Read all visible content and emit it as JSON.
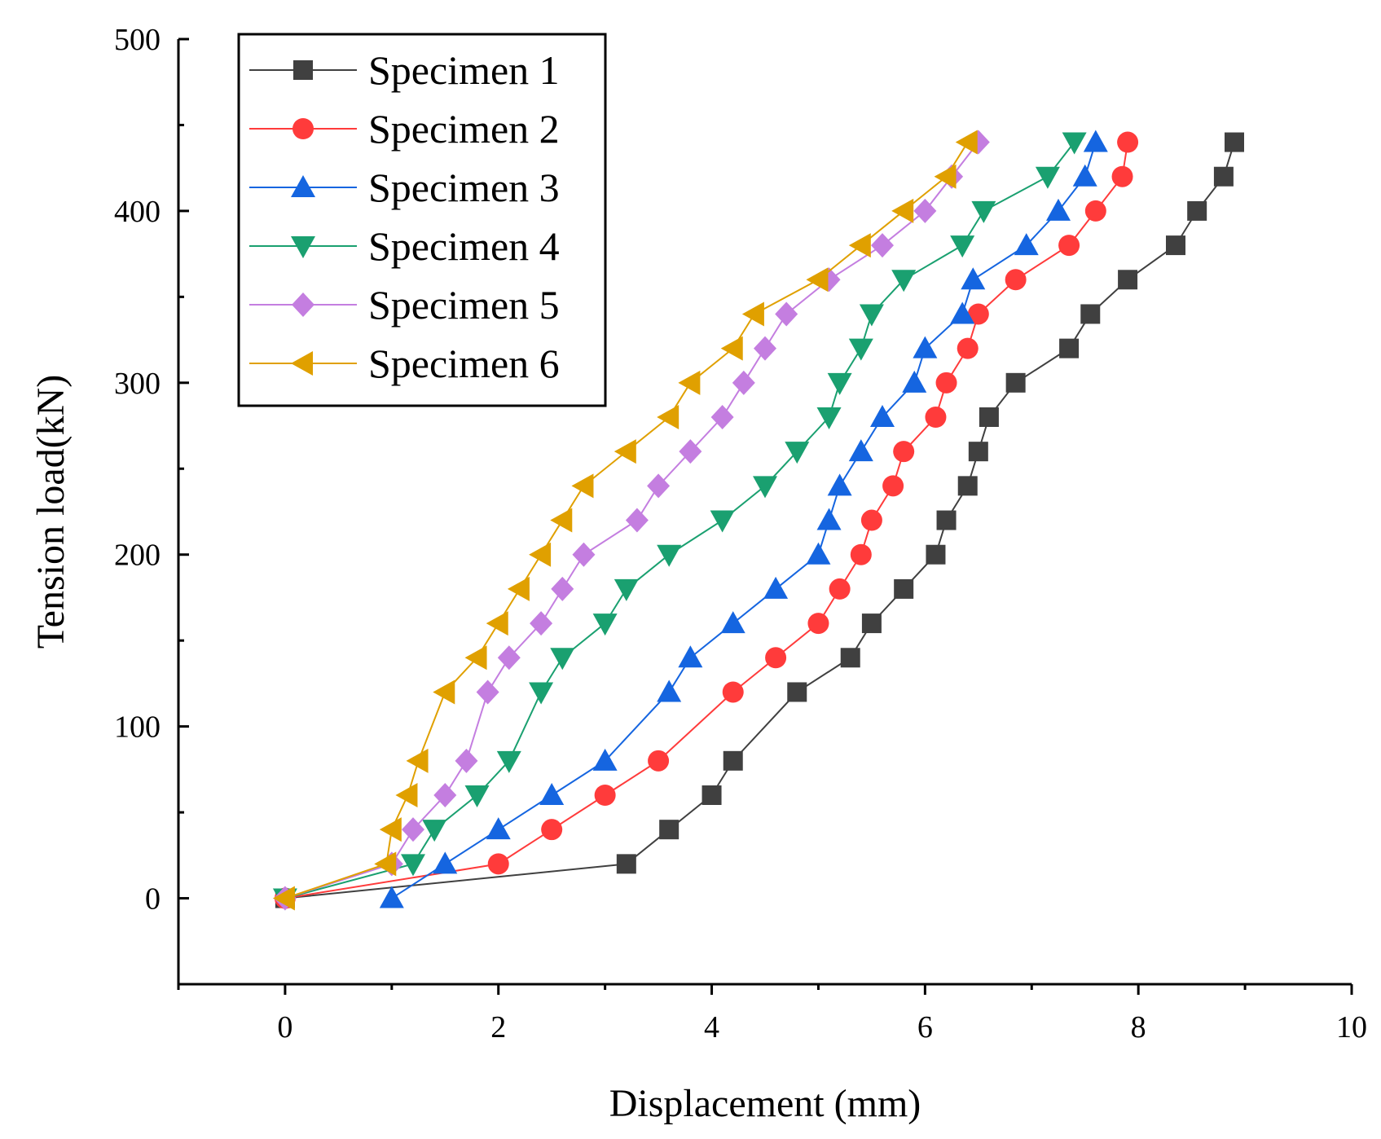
{
  "chart_data": {
    "type": "line",
    "title": "",
    "xlabel": "Displacement (mm)",
    "ylabel": "Tension load(kN)",
    "xlim": [
      -1,
      10
    ],
    "ylim": [
      -50,
      500
    ],
    "xticks": [
      0,
      2,
      4,
      6,
      8,
      10
    ],
    "yticks": [
      0,
      100,
      200,
      300,
      400,
      500
    ],
    "xtick_labels": [
      "0",
      "2",
      "4",
      "6",
      "8",
      "10"
    ],
    "ytick_labels": [
      "0",
      "100",
      "200",
      "300",
      "400",
      "500"
    ],
    "grid": false,
    "legend_position": "top-left",
    "series": [
      {
        "name": "Specimen 1",
        "color": "#404040",
        "marker": "square",
        "x": [
          0,
          3.2,
          3.6,
          4.0,
          4.2,
          4.8,
          5.3,
          5.5,
          5.8,
          6.1,
          6.2,
          6.4,
          6.5,
          6.6,
          6.85,
          7.35,
          7.55,
          7.9,
          8.35,
          8.55,
          8.8,
          8.9
        ],
        "y": [
          0,
          20,
          40,
          60,
          80,
          120,
          140,
          160,
          180,
          200,
          220,
          240,
          260,
          280,
          300,
          320,
          340,
          360,
          380,
          400,
          420,
          440
        ]
      },
      {
        "name": "Specimen 2",
        "color": "#ff3b3b",
        "marker": "circle",
        "x": [
          0,
          2.0,
          2.5,
          3.0,
          3.5,
          4.2,
          4.6,
          5.0,
          5.2,
          5.4,
          5.5,
          5.7,
          5.8,
          6.1,
          6.2,
          6.4,
          6.5,
          6.85,
          7.35,
          7.6,
          7.85,
          7.9
        ],
        "y": [
          0,
          20,
          40,
          60,
          80,
          120,
          140,
          160,
          180,
          200,
          220,
          240,
          260,
          280,
          300,
          320,
          340,
          360,
          380,
          400,
          420,
          440
        ]
      },
      {
        "name": "Specimen 3",
        "color": "#1565e0",
        "marker": "triangle-up",
        "x": [
          1.0,
          1.5,
          2.0,
          2.5,
          3.0,
          3.6,
          3.8,
          4.2,
          4.6,
          5.0,
          5.1,
          5.2,
          5.4,
          5.6,
          5.9,
          6.0,
          6.35,
          6.45,
          6.95,
          7.25,
          7.5,
          7.6
        ],
        "y": [
          0,
          20,
          40,
          60,
          80,
          120,
          140,
          160,
          180,
          200,
          220,
          240,
          260,
          280,
          300,
          320,
          340,
          360,
          380,
          400,
          420,
          440
        ]
      },
      {
        "name": "Specimen 4",
        "color": "#1aa070",
        "marker": "triangle-down",
        "x": [
          0,
          1.2,
          1.4,
          1.8,
          2.1,
          2.4,
          2.6,
          3.0,
          3.2,
          3.6,
          4.1,
          4.5,
          4.8,
          5.1,
          5.2,
          5.4,
          5.5,
          5.8,
          6.35,
          6.55,
          7.15,
          7.4
        ],
        "y": [
          0,
          20,
          40,
          60,
          80,
          120,
          140,
          160,
          180,
          200,
          220,
          240,
          260,
          280,
          300,
          320,
          340,
          360,
          380,
          400,
          420,
          440
        ]
      },
      {
        "name": "Specimen 5",
        "color": "#c47ee0",
        "marker": "diamond",
        "x": [
          0,
          1.0,
          1.2,
          1.5,
          1.7,
          1.9,
          2.1,
          2.4,
          2.6,
          2.8,
          3.3,
          3.5,
          3.8,
          4.1,
          4.3,
          4.5,
          4.7,
          5.1,
          5.6,
          6.0,
          6.25,
          6.5
        ],
        "y": [
          0,
          20,
          40,
          60,
          80,
          120,
          140,
          160,
          180,
          200,
          220,
          240,
          260,
          280,
          300,
          320,
          340,
          360,
          380,
          400,
          420,
          440
        ]
      },
      {
        "name": "Specimen 6",
        "color": "#e0a000",
        "marker": "triangle-left",
        "x": [
          0,
          0.95,
          1.0,
          1.15,
          1.25,
          1.5,
          1.8,
          2.0,
          2.2,
          2.4,
          2.6,
          2.8,
          3.2,
          3.6,
          3.8,
          4.2,
          4.4,
          5.0,
          5.4,
          5.8,
          6.2,
          6.4
        ],
        "y": [
          0,
          20,
          40,
          60,
          80,
          120,
          140,
          160,
          180,
          200,
          220,
          240,
          260,
          280,
          300,
          320,
          340,
          360,
          380,
          400,
          420,
          440
        ]
      }
    ]
  }
}
